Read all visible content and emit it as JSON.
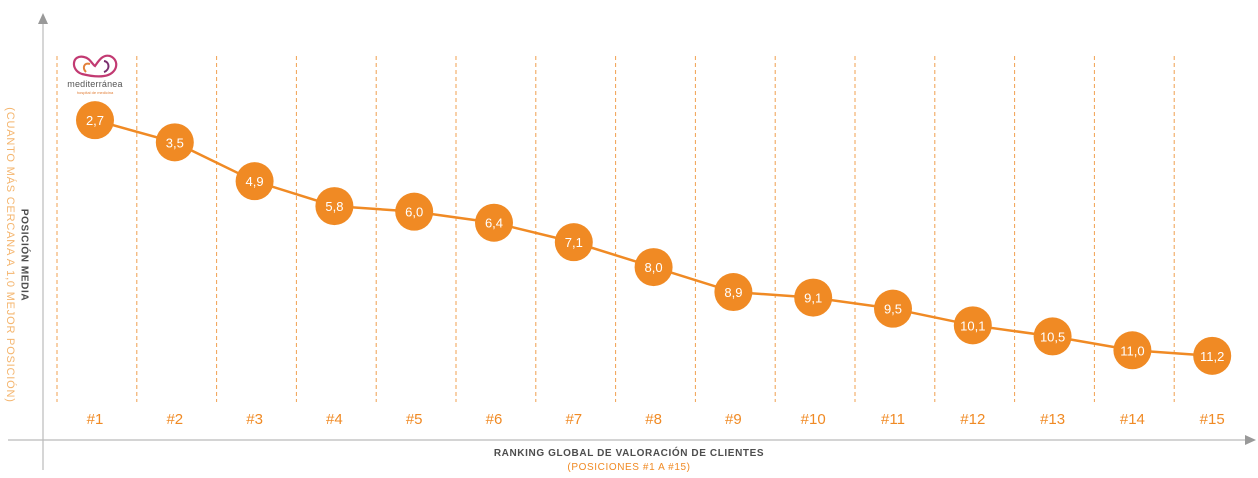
{
  "logo": {
    "wordmark": "mediterránea",
    "tagline": "hospital de medicina",
    "colors": [
      "#e2803a",
      "#c23a72",
      "#7a2e6e"
    ]
  },
  "chart_data": {
    "type": "line",
    "title": "",
    "xlabel": "RANKING GLOBAL DE VALORACIÓN DE CLIENTES",
    "xlabel_sub": "(POSICIONES #1 A #15)",
    "ylabel": "POSICIÓN MEDIA",
    "ylabel_sub": "(CUANTO MÁS CERCANA A 1,0 MEJOR POSICIÓN)",
    "categories": [
      "#1",
      "#2",
      "#3",
      "#4",
      "#5",
      "#6",
      "#7",
      "#8",
      "#9",
      "#10",
      "#11",
      "#12",
      "#13",
      "#14",
      "#15"
    ],
    "values": [
      2.7,
      3.5,
      4.9,
      5.8,
      6.0,
      6.4,
      7.1,
      8.0,
      8.9,
      9.1,
      9.5,
      10.1,
      10.5,
      11.0,
      11.2
    ],
    "value_labels": [
      "2,7",
      "3,5",
      "4,9",
      "5,8",
      "6,0",
      "6,4",
      "7,1",
      "8,0",
      "8,9",
      "9,1",
      "9,5",
      "10,1",
      "10,5",
      "11,0",
      "11,2"
    ],
    "ylim": [
      1,
      12
    ],
    "y_inverted": true,
    "grid": "vertical dashed separators",
    "colors": {
      "series": "#f08a24",
      "separator": "#f0a050",
      "axis": "#bbbbbb",
      "label_text": "#ffffff",
      "tick_text": "#f08a24"
    }
  }
}
